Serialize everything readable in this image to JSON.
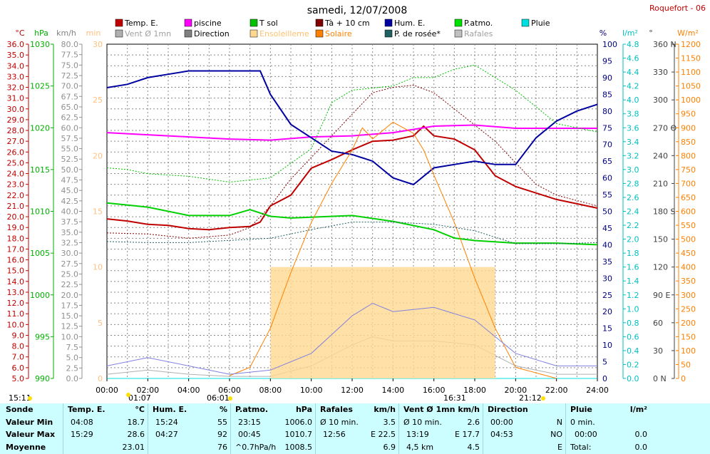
{
  "title": "samedi, 12/07/2008",
  "station": "Roquefort - 06",
  "legend": [
    {
      "label": "Temp. E.",
      "color": "#c00000"
    },
    {
      "label": "piscine",
      "color": "#ff00ff"
    },
    {
      "label": "T sol",
      "color": "#00c000"
    },
    {
      "label": "Tà + 10 cm",
      "color": "#800000"
    },
    {
      "label": "Hum. E.",
      "color": "#0000a0"
    },
    {
      "label": "P.atmo.",
      "color": "#00e000"
    },
    {
      "label": "Pluie",
      "color": "#00e0e0"
    },
    {
      "label": "Vent Ø 1mn",
      "color": "#b0b0b0"
    },
    {
      "label": "Direction",
      "color": "#808080"
    },
    {
      "label": "Ensoleilleme",
      "color": "#ffd890"
    },
    {
      "label": "Solaire",
      "color": "#ff8000"
    },
    {
      "label": "P. de rosée*",
      "color": "#206060"
    },
    {
      "label": "Rafales",
      "color": "#c0c0c0"
    }
  ],
  "axes": {
    "temp": {
      "unit": "°C",
      "min": 5,
      "max": 36,
      "step": 1,
      "color": "#c00000"
    },
    "press": {
      "unit": "hPa",
      "min": 990,
      "max": 1030,
      "step": 5,
      "color": "#00b000"
    },
    "wind": {
      "unit": "km/h",
      "min": 0,
      "max": 80,
      "step": 2.5,
      "color": "#808080"
    },
    "sun": {
      "unit": "min",
      "min": 0,
      "max": 30,
      "step": 5,
      "color": "#ffc080"
    },
    "hum": {
      "unit": "%",
      "min": 0,
      "max": 100,
      "step": 5,
      "color": "#000080"
    },
    "rain": {
      "unit": "l/m²",
      "min": 0,
      "max": 4.8,
      "step": 0.2,
      "color": "#00c0c0"
    },
    "dir": {
      "unit": "°",
      "ticks": [
        "0 N",
        "30",
        "60",
        "90 E",
        "120",
        "150",
        "180 S",
        "210",
        "240",
        "270 O",
        "300",
        "330",
        "360 N"
      ]
    },
    "solar": {
      "unit": "W/m²",
      "min": 0,
      "max": 1200,
      "step": 50,
      "color": "#ff8000"
    }
  },
  "x_ticks": [
    "00:00",
    "02:00",
    "04:00",
    "06:00",
    "08:00",
    "10:00",
    "12:00",
    "14:00",
    "16:00",
    "18:00",
    "20:00",
    "22:00",
    "24:00"
  ],
  "markers": [
    "15:11",
    "01:07",
    "06:01",
    "16:31",
    "21:12"
  ],
  "chart_data": {
    "type": "line",
    "x_unit": "hour",
    "series": [
      {
        "name": "Temp. E.",
        "unit": "°C",
        "x": [
          0,
          1,
          2,
          3,
          4,
          5,
          6,
          7,
          7.5,
          8,
          9,
          10,
          11,
          12,
          13,
          14,
          15,
          15.5,
          16,
          17,
          18,
          19,
          20,
          21,
          22,
          23,
          24
        ],
        "y": [
          19.8,
          19.6,
          19.3,
          19.2,
          18.9,
          18.8,
          19,
          19.1,
          19.5,
          21,
          22,
          24.5,
          25.3,
          26.2,
          27,
          27.1,
          27.5,
          28.4,
          27.5,
          27.2,
          26.2,
          23.8,
          22.8,
          22.2,
          21.6,
          21.2,
          20.8
        ]
      },
      {
        "name": "piscine",
        "unit": "°C",
        "x": [
          0,
          2,
          4,
          6,
          8,
          10,
          12,
          14,
          16,
          18,
          20,
          22,
          24
        ],
        "y": [
          27.8,
          27.6,
          27.4,
          27.2,
          27.1,
          27.4,
          27.5,
          27.8,
          28.4,
          28.5,
          28.2,
          28.2,
          28.2
        ]
      },
      {
        "name": "T sol",
        "unit": "hPa",
        "x": [
          0,
          2,
          4,
          6,
          7,
          8,
          9,
          10,
          12,
          14,
          16,
          17,
          18,
          20,
          22,
          24
        ],
        "y": [
          1011,
          1010.5,
          1009.5,
          1009.5,
          1010.2,
          1009.4,
          1009.2,
          1009.3,
          1009.5,
          1008.8,
          1007.8,
          1006.8,
          1006.5,
          1006.2,
          1006.2,
          1006
        ]
      },
      {
        "name": "Tà + 10 cm",
        "unit": "°C",
        "x": [
          0,
          2,
          4,
          6,
          7,
          8,
          9,
          10,
          11,
          12,
          13,
          14,
          15,
          16,
          17,
          18,
          19,
          20,
          21,
          22,
          23,
          24
        ],
        "y": [
          18.5,
          18.4,
          18,
          18.3,
          19,
          21,
          23.5,
          25.5,
          27.5,
          29.5,
          31.5,
          32,
          32.2,
          31.5,
          30,
          28.5,
          27,
          25,
          23,
          22,
          21.5,
          21
        ]
      },
      {
        "name": "Hum. E.",
        "unit": "%",
        "x": [
          0,
          1,
          2,
          3,
          4,
          5,
          6,
          7,
          7.5,
          8,
          9,
          10,
          11,
          12,
          13,
          14,
          15,
          16,
          17,
          18,
          19,
          20,
          21,
          22,
          23,
          24
        ],
        "y": [
          87,
          88,
          90,
          91,
          92,
          92,
          92,
          92,
          92,
          85,
          76,
          72,
          68,
          67,
          65,
          60,
          58,
          63,
          64,
          65,
          64,
          64,
          72,
          77,
          80,
          82
        ]
      },
      {
        "name": "P.atmo.",
        "unit": "hPa",
        "x": [
          0,
          1,
          2,
          4,
          6,
          8,
          10,
          11,
          12,
          14,
          15,
          16,
          17,
          18,
          20,
          22,
          24
        ],
        "y": [
          1015.2,
          1015,
          1014.5,
          1014.2,
          1013.5,
          1014,
          1017.5,
          1023,
          1024.5,
          1025,
          1026,
          1026,
          1027,
          1027.5,
          1024.5,
          1020.5,
          1019.5
        ]
      },
      {
        "name": "Pluie",
        "unit": "l/m²",
        "x": [
          0,
          24
        ],
        "y": [
          0,
          0
        ]
      },
      {
        "name": "Vent Ø 1mn",
        "unit": "km/h",
        "x": [
          0,
          2,
          4,
          6,
          8,
          10,
          12,
          13,
          14,
          16,
          18,
          20,
          22,
          24
        ],
        "y": [
          1,
          2,
          1,
          0.5,
          0.5,
          3,
          8,
          10,
          9,
          9,
          8,
          3,
          1,
          1
        ]
      },
      {
        "name": "Direction",
        "unit": "°",
        "x": [],
        "y": []
      },
      {
        "name": "Ensoleilleme",
        "unit": "min",
        "x": [
          8,
          19
        ],
        "y": [
          10,
          10
        ]
      },
      {
        "name": "Solaire",
        "unit": "W/m²",
        "x": [
          6,
          7,
          8,
          9,
          10,
          11,
          12,
          12.5,
          13,
          14,
          15,
          15.5,
          16,
          17,
          18,
          19,
          20,
          21,
          22
        ],
        "y": [
          10,
          40,
          180,
          380,
          560,
          700,
          820,
          900,
          860,
          920,
          880,
          820,
          730,
          560,
          360,
          180,
          40,
          20,
          0
        ]
      },
      {
        "name": "P. de rosée*",
        "unit": "°C",
        "x": [
          0,
          2,
          4,
          6,
          8,
          10,
          12,
          14,
          16,
          18,
          20,
          22,
          24
        ],
        "y": [
          17.7,
          17.6,
          17.6,
          17.8,
          18,
          18.8,
          19.5,
          19.5,
          19.3,
          18.7,
          17.5,
          17.5,
          17.6
        ]
      },
      {
        "name": "Rafales",
        "unit": "km/h",
        "x": [
          0,
          2,
          4,
          6,
          8,
          10,
          12,
          13,
          14,
          16,
          18,
          20,
          22,
          24
        ],
        "y": [
          3,
          5,
          3,
          1,
          2,
          6,
          15,
          18,
          16,
          17,
          14,
          6,
          3,
          3
        ]
      }
    ]
  },
  "stats": {
    "sonde": {
      "h": "Sonde",
      "r1": "Valeur Min",
      "r2": "Valeur Max",
      "r3": "Moyenne"
    },
    "temp": {
      "h": "Temp. E.",
      "u": "°C",
      "t1": "04:08",
      "v1": "18.7",
      "t2": "15:29",
      "v2": "28.6",
      "v3": "23.01"
    },
    "hum": {
      "h": "Hum. E.",
      "u": "%",
      "t1": "15:24",
      "v1": "55",
      "t2": "04:27",
      "v2": "92",
      "v3": "76"
    },
    "press": {
      "h": "P.atmo.",
      "u": "hPa",
      "t1": "23:15",
      "v1": "1006.0",
      "t2": "00:45",
      "v2": "1010.7",
      "t3": "^0.7hPa/h",
      "v3": "1008.5"
    },
    "gust": {
      "h": "Rafales",
      "u": "km/h",
      "t1": "Ø 10 min.",
      "v1": "3.5",
      "t2": "12:56",
      "v2": "E 22.5",
      "v3": "6.9"
    },
    "wind": {
      "h": "Vent Ø 1mn",
      "u": "km/h",
      "t1": "Ø 10 min.",
      "v1": "2.6",
      "t2": "13:19",
      "v2": "E 17.7",
      "t3": "4,5 km",
      "v3": "4.5"
    },
    "dir": {
      "h": "Direction",
      "t1": "00:00",
      "v1": "N",
      "t2": "04:53",
      "v2": "NO",
      "v3": "E"
    },
    "rain": {
      "h": "Pluie",
      "u": "l/m²",
      "t1": "0 min.",
      "t2": "00:00",
      "v2": "0.0",
      "t3": "Total:",
      "v3": "0.0"
    }
  }
}
